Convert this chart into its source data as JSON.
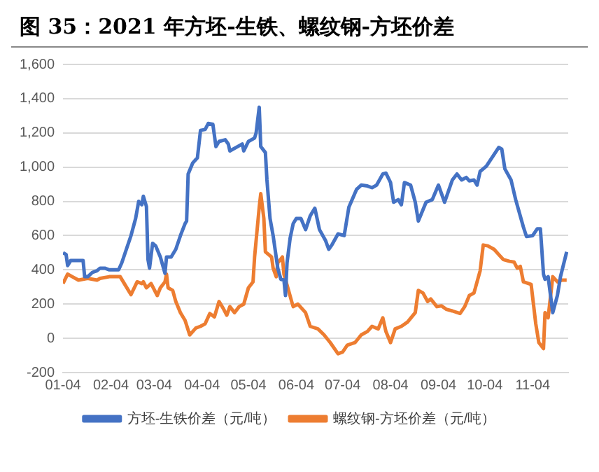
{
  "chart_data": {
    "type": "line",
    "title": "图 35：2021 年方坯-生铁、螺纹钢-方坯价差",
    "xlim": [
      "2021-01-04",
      "2021-11-27"
    ],
    "xticks": [
      {
        "value": "2021-01-04",
        "label": "01-04"
      },
      {
        "value": "2021-02-04",
        "label": "02-04"
      },
      {
        "value": "2021-03-04",
        "label": "03-04"
      },
      {
        "value": "2021-04-04",
        "label": "04-04"
      },
      {
        "value": "2021-05-04",
        "label": "05-04"
      },
      {
        "value": "2021-06-04",
        "label": "06-04"
      },
      {
        "value": "2021-07-04",
        "label": "07-04"
      },
      {
        "value": "2021-08-04",
        "label": "08-04"
      },
      {
        "value": "2021-09-04",
        "label": "09-04"
      },
      {
        "value": "2021-10-04",
        "label": "10-04"
      },
      {
        "value": "2021-11-04",
        "label": "11-04"
      }
    ],
    "ylim": [
      -200,
      1600
    ],
    "yticks": [
      -200,
      0,
      200,
      400,
      600,
      800,
      {
        "value": 1000,
        "label": "1,000"
      },
      {
        "value": 1200,
        "label": "1,200"
      },
      {
        "value": 1400,
        "label": "1,400"
      },
      {
        "value": 1600,
        "label": "1,600"
      }
    ],
    "grid": "y",
    "legend": "bottom",
    "marker": "none",
    "line_style": "solid",
    "series": [
      {
        "name": "方坯-生铁价差（元/吨）",
        "color": "#4472c4",
        "x": [
          "2021-01-04",
          "2021-01-06",
          "2021-01-07",
          "2021-01-09",
          "2021-01-17",
          "2021-01-18",
          "2021-01-20",
          "2021-01-23",
          "2021-01-26",
          "2021-01-28",
          "2021-01-31",
          "2021-02-03",
          "2021-02-09",
          "2021-02-11",
          "2021-02-14",
          "2021-02-17",
          "2021-02-20",
          "2021-02-22",
          "2021-02-24",
          "2021-02-25",
          "2021-02-27",
          "2021-02-28",
          "2021-03-01",
          "2021-03-03",
          "2021-03-05",
          "2021-03-08",
          "2021-03-11",
          "2021-03-12",
          "2021-03-15",
          "2021-03-18",
          "2021-03-21",
          "2021-03-24",
          "2021-03-25",
          "2021-03-26",
          "2021-03-29",
          "2021-04-01",
          "2021-04-03",
          "2021-04-06",
          "2021-04-08",
          "2021-04-11",
          "2021-04-13",
          "2021-04-15",
          "2021-04-19",
          "2021-04-21",
          "2021-04-22",
          "2021-04-27",
          "2021-04-30",
          "2021-05-01",
          "2021-05-04",
          "2021-05-08",
          "2021-05-09",
          "2021-05-11",
          "2021-05-12",
          "2021-05-15",
          "2021-05-16",
          "2021-05-18",
          "2021-05-20",
          "2021-05-23",
          "2021-05-25",
          "2021-05-27",
          "2021-05-28",
          "2021-05-29",
          "2021-05-31",
          "2021-06-02",
          "2021-06-04",
          "2021-06-07",
          "2021-06-10",
          "2021-06-13",
          "2021-06-16",
          "2021-06-19",
          "2021-06-23",
          "2021-06-25",
          "2021-06-27",
          "2021-07-01",
          "2021-07-05",
          "2021-07-08",
          "2021-07-13",
          "2021-07-16",
          "2021-07-20",
          "2021-07-23",
          "2021-07-26",
          "2021-07-30",
          "2021-08-01",
          "2021-08-04",
          "2021-08-06",
          "2021-08-09",
          "2021-08-11",
          "2021-08-13",
          "2021-08-17",
          "2021-08-20",
          "2021-08-22",
          "2021-08-27",
          "2021-08-31",
          "2021-09-04",
          "2021-09-06",
          "2021-09-08",
          "2021-09-13",
          "2021-09-16",
          "2021-09-19",
          "2021-09-22",
          "2021-09-24",
          "2021-09-27",
          "2021-09-29",
          "2021-10-01",
          "2021-10-05",
          "2021-10-13",
          "2021-10-15",
          "2021-10-17",
          "2021-10-21",
          "2021-10-24",
          "2021-10-29",
          "2021-10-31",
          "2021-11-04",
          "2021-11-07",
          "2021-11-09",
          "2021-11-11",
          "2021-11-12",
          "2021-11-14",
          "2021-11-17",
          "2021-11-20",
          "2021-11-22",
          "2021-11-26"
        ],
        "values": [
          500,
          490,
          425,
          455,
          455,
          360,
          360,
          385,
          395,
          410,
          410,
          400,
          400,
          440,
          520,
          600,
          700,
          800,
          780,
          830,
          770,
          460,
          410,
          555,
          540,
          475,
          380,
          475,
          475,
          520,
          600,
          670,
          685,
          960,
          1025,
          1055,
          1215,
          1220,
          1255,
          1250,
          1120,
          1150,
          1160,
          1135,
          1095,
          1120,
          1135,
          1095,
          1150,
          1170,
          1200,
          1350,
          1120,
          1085,
          925,
          700,
          600,
          410,
          345,
          340,
          250,
          440,
          585,
          670,
          700,
          700,
          635,
          715,
          760,
          635,
          570,
          520,
          545,
          610,
          600,
          765,
          870,
          895,
          890,
          880,
          895,
          960,
          965,
          910,
          795,
          810,
          780,
          910,
          895,
          795,
          685,
          795,
          810,
          895,
          845,
          795,
          925,
          960,
          925,
          940,
          920,
          925,
          895,
          975,
          1005,
          1115,
          1105,
          990,
          925,
          810,
          650,
          595,
          600,
          640,
          640,
          375,
          345,
          360,
          150,
          250,
          360,
          505
        ]
      },
      {
        "name": "螺纹钢-方坯价差（元/吨）",
        "color": "#ed7d31",
        "x": [
          "2021-01-04",
          "2021-01-07",
          "2021-01-10",
          "2021-01-14",
          "2021-01-17",
          "2021-01-20",
          "2021-01-26",
          "2021-01-28",
          "2021-02-03",
          "2021-02-10",
          "2021-02-13",
          "2021-02-17",
          "2021-02-21",
          "2021-02-24",
          "2021-02-25",
          "2021-02-27",
          "2021-03-02",
          "2021-03-06",
          "2021-03-08",
          "2021-03-11",
          "2021-03-12",
          "2021-03-13",
          "2021-03-16",
          "2021-03-18",
          "2021-03-21",
          "2021-03-24",
          "2021-03-27",
          "2021-03-29",
          "2021-03-31",
          "2021-04-03",
          "2021-04-06",
          "2021-04-09",
          "2021-04-12",
          "2021-04-15",
          "2021-04-18",
          "2021-04-20",
          "2021-04-22",
          "2021-04-25",
          "2021-04-28",
          "2021-05-01",
          "2021-05-04",
          "2021-05-07",
          "2021-05-08",
          "2021-05-11",
          "2021-05-12",
          "2021-05-14",
          "2021-05-15",
          "2021-05-19",
          "2021-05-20",
          "2021-05-22",
          "2021-05-23",
          "2021-05-26",
          "2021-05-27",
          "2021-05-30",
          "2021-06-01",
          "2021-06-02",
          "2021-06-05",
          "2021-06-10",
          "2021-06-13",
          "2021-06-18",
          "2021-06-22",
          "2021-06-26",
          "2021-07-01",
          "2021-07-04",
          "2021-07-07",
          "2021-07-12",
          "2021-07-16",
          "2021-07-20",
          "2021-07-23",
          "2021-07-27",
          "2021-07-30",
          "2021-08-01",
          "2021-08-04",
          "2021-08-07",
          "2021-08-11",
          "2021-08-15",
          "2021-08-20",
          "2021-08-22",
          "2021-08-25",
          "2021-08-28",
          "2021-08-30",
          "2021-09-03",
          "2021-09-06",
          "2021-09-09",
          "2021-09-13",
          "2021-09-18",
          "2021-09-21",
          "2021-09-24",
          "2021-09-27",
          "2021-10-01",
          "2021-10-03",
          "2021-10-06",
          "2021-10-10",
          "2021-10-13",
          "2021-10-16",
          "2021-10-20",
          "2021-10-23",
          "2021-10-25",
          "2021-10-27",
          "2021-10-29",
          "2021-11-03",
          "2021-11-06",
          "2021-11-08",
          "2021-11-11",
          "2021-11-12",
          "2021-11-14",
          "2021-11-17",
          "2021-11-20",
          "2021-11-23",
          "2021-11-26"
        ],
        "values": [
          320,
          375,
          360,
          340,
          345,
          350,
          340,
          350,
          360,
          360,
          315,
          255,
          330,
          320,
          330,
          295,
          320,
          250,
          295,
          330,
          375,
          295,
          280,
          215,
          150,
          105,
          20,
          40,
          60,
          70,
          85,
          145,
          125,
          215,
          170,
          135,
          185,
          150,
          185,
          200,
          295,
          330,
          475,
          765,
          845,
          700,
          505,
          475,
          410,
          360,
          440,
          475,
          375,
          280,
          215,
          185,
          200,
          150,
          70,
          55,
          20,
          -25,
          -90,
          -80,
          -40,
          -25,
          20,
          40,
          70,
          55,
          120,
          40,
          -25,
          55,
          70,
          95,
          150,
          280,
          265,
          215,
          230,
          185,
          190,
          170,
          160,
          145,
          185,
          250,
          265,
          395,
          545,
          540,
          520,
          490,
          460,
          450,
          445,
          410,
          420,
          330,
          315,
          85,
          -25,
          -60,
          150,
          120,
          360,
          330,
          340,
          340
        ]
      }
    ]
  }
}
